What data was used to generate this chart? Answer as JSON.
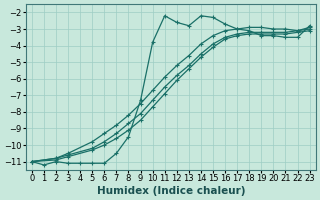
{
  "xlabel": "Humidex (Indice chaleur)",
  "xlim": [
    -0.5,
    23.5
  ],
  "ylim": [
    -11.5,
    -1.5
  ],
  "background_color": "#c8e8dc",
  "grid_color": "#9ecec4",
  "line_color": "#1a7068",
  "line1_x": [
    0,
    1,
    2,
    3,
    4,
    5,
    6,
    7,
    8,
    9,
    10,
    11,
    12,
    13,
    14,
    15,
    16,
    17,
    18,
    19,
    20,
    21,
    22,
    23
  ],
  "line1_y": [
    -11.0,
    -11.2,
    -11.0,
    -11.1,
    -11.1,
    -11.1,
    -11.1,
    -10.5,
    -9.5,
    -7.3,
    -3.8,
    -2.2,
    -2.6,
    -2.8,
    -2.2,
    -2.3,
    -2.7,
    -3.0,
    -3.1,
    -3.4,
    -3.4,
    -3.5,
    -3.5,
    -2.8
  ],
  "line2_x": [
    0,
    2,
    3,
    5,
    6,
    7,
    8,
    9,
    10,
    11,
    12,
    13,
    14,
    15,
    16,
    17,
    18,
    19,
    20,
    21,
    22,
    23
  ],
  "line2_y": [
    -11.0,
    -10.8,
    -10.6,
    -10.2,
    -9.8,
    -9.3,
    -8.7,
    -8.1,
    -7.3,
    -6.5,
    -5.8,
    -5.2,
    -4.5,
    -3.9,
    -3.5,
    -3.3,
    -3.2,
    -3.2,
    -3.2,
    -3.2,
    -3.1,
    -3.0
  ],
  "line3_x": [
    0,
    2,
    3,
    5,
    6,
    7,
    8,
    9,
    10,
    11,
    12,
    13,
    14,
    15,
    16,
    17,
    18,
    19,
    20,
    21,
    22,
    23
  ],
  "line3_y": [
    -11.0,
    -10.8,
    -10.5,
    -9.8,
    -9.3,
    -8.8,
    -8.2,
    -7.5,
    -6.7,
    -5.9,
    -5.2,
    -4.6,
    -3.9,
    -3.4,
    -3.1,
    -3.0,
    -2.9,
    -2.9,
    -3.0,
    -3.0,
    -3.1,
    -2.9
  ],
  "line4_x": [
    0,
    2,
    3,
    5,
    6,
    7,
    8,
    9,
    10,
    11,
    12,
    13,
    14,
    15,
    16,
    17,
    18,
    19,
    20,
    21,
    22,
    23
  ],
  "line4_y": [
    -11.0,
    -10.9,
    -10.7,
    -10.3,
    -10.0,
    -9.6,
    -9.1,
    -8.5,
    -7.7,
    -6.9,
    -6.1,
    -5.4,
    -4.7,
    -4.1,
    -3.6,
    -3.4,
    -3.3,
    -3.3,
    -3.3,
    -3.3,
    -3.2,
    -3.1
  ],
  "xticks": [
    0,
    1,
    2,
    3,
    4,
    5,
    6,
    7,
    8,
    9,
    10,
    11,
    12,
    13,
    14,
    15,
    16,
    17,
    18,
    19,
    20,
    21,
    22,
    23
  ],
  "yticks": [
    -2,
    -3,
    -4,
    -5,
    -6,
    -7,
    -8,
    -9,
    -10,
    -11
  ],
  "tick_fontsize": 6.0,
  "xlabel_fontsize": 7.5
}
